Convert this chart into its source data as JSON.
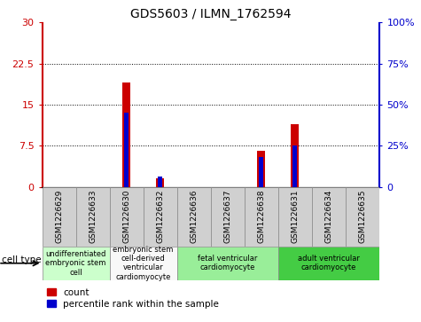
{
  "title": "GDS5603 / ILMN_1762594",
  "samples": [
    "GSM1226629",
    "GSM1226633",
    "GSM1226630",
    "GSM1226632",
    "GSM1226636",
    "GSM1226637",
    "GSM1226638",
    "GSM1226631",
    "GSM1226634",
    "GSM1226635"
  ],
  "count_values": [
    0,
    0,
    19.0,
    1.5,
    0,
    0,
    6.5,
    11.5,
    0,
    0
  ],
  "percentile_values": [
    0,
    0,
    45,
    6,
    0,
    0,
    18,
    25,
    0,
    0
  ],
  "left_ylim": [
    0,
    30
  ],
  "right_ylim": [
    0,
    100
  ],
  "left_yticks": [
    0,
    7.5,
    15,
    22.5,
    30
  ],
  "right_yticks": [
    0,
    25,
    50,
    75,
    100
  ],
  "left_ytick_labels": [
    "0",
    "7.5",
    "15",
    "22.5",
    "30"
  ],
  "right_ytick_labels": [
    "0",
    "25%",
    "50%",
    "75%",
    "100%"
  ],
  "left_ycolor": "#cc0000",
  "right_ycolor": "#0000cc",
  "bar_color_count": "#cc0000",
  "bar_color_percentile": "#0000cc",
  "bar_width": 0.25,
  "cell_types": [
    {
      "label": "undifferentiated\nembryonic stem\ncell",
      "start": 0,
      "end": 1,
      "color": "#ccffcc"
    },
    {
      "label": "embryonic stem\ncell-derived\nventricular\ncardiomyocyte",
      "start": 2,
      "end": 3,
      "color": "#f8f8f8"
    },
    {
      "label": "fetal ventricular\ncardiomyocyte",
      "start": 4,
      "end": 6,
      "color": "#99ee99"
    },
    {
      "label": "adult ventricular\ncardiomyocyte",
      "start": 7,
      "end": 9,
      "color": "#44cc44"
    }
  ],
  "legend_count_label": "count",
  "legend_percentile_label": "percentile rank within the sample",
  "cell_type_label": "cell type",
  "grid_yticks": [
    7.5,
    15,
    22.5
  ],
  "sample_box_color": "#d0d0d0",
  "background_color": "#ffffff"
}
